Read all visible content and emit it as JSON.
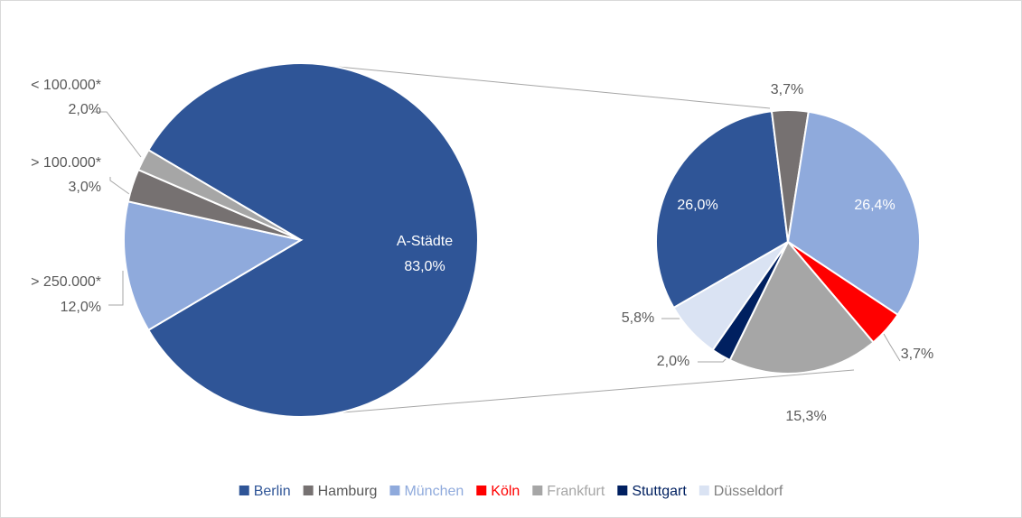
{
  "chart_data": [
    {
      "type": "pie",
      "categories": [
        "A-Städte",
        "> 250.000*",
        "> 100.000*",
        "< 100.000*"
      ],
      "values": [
        83.0,
        12.0,
        3.0,
        2.0
      ],
      "value_labels": [
        "83,0%",
        "12,0%",
        "3,0%",
        "2,0%"
      ],
      "colors": [
        "#2f5597",
        "#8faadc",
        "#767171",
        "#a6a6a6"
      ]
    },
    {
      "type": "pie",
      "series": [
        {
          "name": "Berlin",
          "color": "#2f5597",
          "values": [
            26.0
          ],
          "value_labels": [
            "26,0%"
          ]
        },
        {
          "name": "Hamburg",
          "color": "#767171",
          "values": [
            3.7
          ],
          "value_labels": [
            "3,7%"
          ]
        },
        {
          "name": "München",
          "color": "#8faadc",
          "values": [
            26.4
          ],
          "value_labels": [
            "26,4%"
          ]
        },
        {
          "name": "Köln",
          "color": "#ff0000",
          "values": [
            3.7
          ],
          "value_labels": [
            "3,7%"
          ]
        },
        {
          "name": "Frankfurt",
          "color": "#a6a6a6",
          "values": [
            15.3
          ],
          "value_labels": [
            "15,3%"
          ]
        },
        {
          "name": "Stuttgart",
          "color": "#002060",
          "values": [
            2.0
          ],
          "value_labels": [
            "2,0%"
          ]
        },
        {
          "name": "Düsseldorf",
          "color": "#dae3f3",
          "values": [
            5.8
          ],
          "value_labels": [
            "5,8%"
          ]
        }
      ],
      "legend_text_colors": [
        "#2f5597",
        "#595959",
        "#8faadc",
        "#ff0000",
        "#a6a6a6",
        "#002060",
        "#7f7f7f"
      ],
      "legend": "bottom"
    }
  ]
}
